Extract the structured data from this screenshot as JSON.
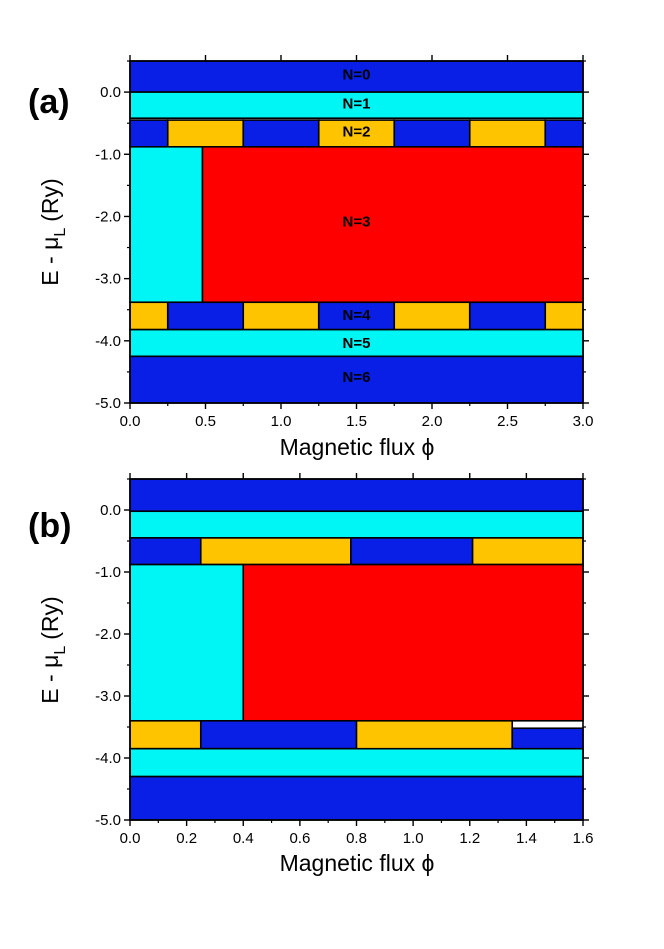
{
  "colors": {
    "occ0": "#0a1fe6",
    "occ1": "#00f5f5",
    "occ2": "#ffc400",
    "occ3": "#ff0000",
    "outline": "#000000"
  },
  "chart_data": [
    {
      "type": "area",
      "panel_label": "(a)",
      "xlabel": "Magnetic flux ϕ",
      "ylabel_main": "E - μ",
      "ylabel_sub": "L",
      "ylabel_unit": "(Ry)",
      "xlim": [
        0,
        3
      ],
      "ylim": [
        -5,
        0.5
      ],
      "x_ticks": [
        0,
        0.5,
        1,
        1.5,
        2,
        2.5,
        3
      ],
      "x_tick_labels": [
        "0.0",
        "0.5",
        "1.0",
        "1.5",
        "2.0",
        "2.5",
        "3.0"
      ],
      "y_ticks": [
        0,
        -1,
        -2,
        -3,
        -4,
        -5
      ],
      "y_tick_labels": [
        "0.0",
        "-1.0",
        "-2.0",
        "-3.0",
        "-4.0",
        "-5.0"
      ],
      "bands": [
        {
          "label": "N=0",
          "label_x": 1.5,
          "label_y": 0.27,
          "segments": [
            {
              "x0": 0,
              "x1": 3,
              "top": 0.5,
              "bottom": 0,
              "occ": "occ0"
            }
          ]
        },
        {
          "label": "N=1",
          "label_x": 1.5,
          "label_y": -0.2,
          "segments": [
            {
              "x0": 0,
              "x1": 3,
              "top": 0,
              "bottom": -0.42,
              "occ": "occ1"
            }
          ]
        },
        {
          "label": "N=2",
          "label_x": 1.5,
          "label_y": -0.65,
          "segments": [
            {
              "x0": 0,
              "x1": 0.25,
              "top": -0.45,
              "bottom": -0.88,
              "occ": "occ0"
            },
            {
              "x0": 0.25,
              "x1": 0.75,
              "top": -0.45,
              "bottom": -0.88,
              "occ": "occ2"
            },
            {
              "x0": 0.75,
              "x1": 1.25,
              "top": -0.45,
              "bottom": -0.88,
              "occ": "occ0"
            },
            {
              "x0": 1.25,
              "x1": 1.75,
              "top": -0.45,
              "bottom": -0.88,
              "occ": "occ2"
            },
            {
              "x0": 1.75,
              "x1": 2.25,
              "top": -0.45,
              "bottom": -0.88,
              "occ": "occ0"
            },
            {
              "x0": 2.25,
              "x1": 2.75,
              "top": -0.45,
              "bottom": -0.88,
              "occ": "occ2"
            },
            {
              "x0": 2.75,
              "x1": 3,
              "top": -0.45,
              "bottom": -0.88,
              "occ": "occ0"
            }
          ]
        },
        {
          "label": "N=3",
          "label_x": 1.5,
          "label_y": -2.1,
          "segments": [
            {
              "x0": 0,
              "x1": 0.48,
              "top": -0.88,
              "bottom": -3.38,
              "occ": "occ1"
            },
            {
              "x0": 0.48,
              "x1": 3,
              "top": -0.88,
              "bottom": -3.38,
              "occ": "occ3"
            }
          ]
        },
        {
          "label": "N=4",
          "label_x": 1.5,
          "label_y": -3.6,
          "segments": [
            {
              "x0": 0,
              "x1": 0.25,
              "top": -3.38,
              "bottom": -3.82,
              "occ": "occ2"
            },
            {
              "x0": 0.25,
              "x1": 0.75,
              "top": -3.38,
              "bottom": -3.82,
              "occ": "occ0"
            },
            {
              "x0": 0.75,
              "x1": 1.25,
              "top": -3.38,
              "bottom": -3.82,
              "occ": "occ2"
            },
            {
              "x0": 1.25,
              "x1": 1.75,
              "top": -3.38,
              "bottom": -3.82,
              "occ": "occ0"
            },
            {
              "x0": 1.75,
              "x1": 2.25,
              "top": -3.38,
              "bottom": -3.82,
              "occ": "occ2"
            },
            {
              "x0": 2.25,
              "x1": 2.75,
              "top": -3.38,
              "bottom": -3.82,
              "occ": "occ0"
            },
            {
              "x0": 2.75,
              "x1": 3,
              "top": -3.38,
              "bottom": -3.82,
              "occ": "occ2"
            }
          ]
        },
        {
          "label": "N=5",
          "label_x": 1.5,
          "label_y": -4.05,
          "segments": [
            {
              "x0": 0,
              "x1": 3,
              "top": -3.82,
              "bottom": -4.25,
              "occ": "occ1"
            }
          ]
        },
        {
          "label": "N=6",
          "label_x": 1.5,
          "label_y": -4.6,
          "segments": [
            {
              "x0": 0,
              "x1": 3,
              "top": -4.25,
              "bottom": -5,
              "occ": "occ0"
            }
          ]
        }
      ]
    },
    {
      "type": "area",
      "panel_label": "(b)",
      "xlabel": "Magnetic flux ϕ",
      "ylabel_main": "E - μ",
      "ylabel_sub": "L",
      "ylabel_unit": "(Ry)",
      "xlim": [
        0,
        1.6
      ],
      "ylim": [
        -5,
        0.5
      ],
      "x_ticks": [
        0,
        0.2,
        0.4,
        0.6,
        0.8,
        1.0,
        1.2,
        1.4,
        1.6
      ],
      "x_tick_labels": [
        "0.0",
        "0.2",
        "0.4",
        "0.6",
        "0.8",
        "1.0",
        "1.2",
        "1.4",
        "1.6"
      ],
      "y_ticks": [
        0,
        -1,
        -2,
        -3,
        -4,
        -5
      ],
      "y_tick_labels": [
        "0.0",
        "-1.0",
        "-2.0",
        "-3.0",
        "-4.0",
        "-5.0"
      ],
      "bands": [
        {
          "label": "",
          "segments": [
            {
              "x0": 0,
              "x1": 1.6,
              "top": 0.5,
              "bottom": -0.02,
              "occ": "occ0"
            }
          ]
        },
        {
          "label": "",
          "segments": [
            {
              "x0": 0,
              "x1": 1.6,
              "top": -0.02,
              "bottom": -0.45,
              "occ": "occ1"
            }
          ]
        },
        {
          "label": "",
          "segments": [
            {
              "x0": 0,
              "x1": 0.25,
              "top": -0.45,
              "bottom": -0.88,
              "occ": "occ0"
            },
            {
              "x0": 0.25,
              "x1": 0.78,
              "top": -0.45,
              "bottom": -0.88,
              "occ": "occ2"
            },
            {
              "x0": 0.78,
              "x1": 1.21,
              "top": -0.45,
              "bottom": -0.88,
              "occ": "occ0"
            },
            {
              "x0": 1.21,
              "x1": 1.6,
              "top": -0.45,
              "bottom": -0.88,
              "occ": "occ2"
            }
          ]
        },
        {
          "label": "",
          "segments": [
            {
              "x0": 0,
              "x1": 0.4,
              "top": -0.88,
              "bottom": -3.4,
              "occ": "occ1"
            },
            {
              "x0": 0.4,
              "x1": 1.6,
              "top": -0.88,
              "bottom": -3.4,
              "occ": "occ3"
            }
          ]
        },
        {
          "label": "",
          "segments": [
            {
              "x0": 0,
              "x1": 0.25,
              "top": -3.4,
              "bottom": -3.85,
              "occ": "occ2"
            },
            {
              "x0": 0.25,
              "x1": 0.8,
              "top": -3.4,
              "bottom": -3.85,
              "occ": "occ0"
            },
            {
              "x0": 0.8,
              "x1": 1.35,
              "top": -3.4,
              "bottom": -3.92,
              "occ": "occ2"
            },
            {
              "x0": 1.35,
              "x1": 1.6,
              "top": -3.52,
              "bottom": -3.92,
              "occ": "occ0"
            }
          ]
        },
        {
          "label": "",
          "segments": [
            {
              "x0": 0,
              "x1": 1.6,
              "top": -3.85,
              "bottom": -4.3,
              "occ": "occ1"
            }
          ]
        },
        {
          "label": "",
          "segments": [
            {
              "x0": 0,
              "x1": 1.6,
              "top": -4.3,
              "bottom": -5,
              "occ": "occ0"
            }
          ]
        }
      ]
    }
  ]
}
